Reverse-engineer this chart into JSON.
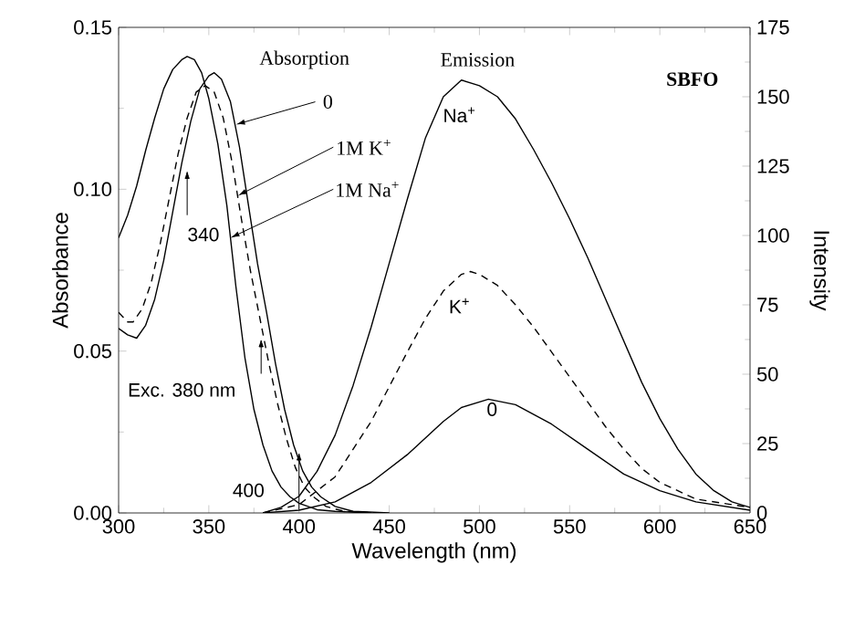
{
  "chart_data": {
    "type": "line",
    "xlabel": "Wavelength  (nm)",
    "ylabel": "Absorbance",
    "y2label": "Intensity",
    "xlim": [
      300,
      650
    ],
    "xticks": [
      300,
      350,
      400,
      450,
      500,
      550,
      600,
      650
    ],
    "ylim": [
      0,
      0.15
    ],
    "yticks": [
      {
        "value": 0,
        "label": "0.00"
      },
      {
        "value": 0.05,
        "label": "0.05"
      },
      {
        "value": 0.1,
        "label": "0.10"
      },
      {
        "value": 0.15,
        "label": "0.15"
      }
    ],
    "y2lim": [
      0,
      175
    ],
    "y2ticks": [
      0,
      25,
      50,
      75,
      100,
      125,
      150,
      175
    ],
    "grid": false,
    "marker": "none",
    "series": [
      {
        "color": "#000000",
        "line_style": "solid",
        "x": [
          300,
          305,
          310,
          315,
          320,
          325,
          330,
          335,
          338,
          342,
          346,
          350,
          355,
          360,
          365,
          370,
          375,
          380,
          385,
          390,
          395,
          400,
          410,
          420,
          440
        ],
        "values": [
          0.085,
          0.092,
          0.101,
          0.112,
          0.122,
          0.131,
          0.137,
          0.14,
          0.141,
          0.14,
          0.136,
          0.128,
          0.114,
          0.095,
          0.07,
          0.048,
          0.032,
          0.021,
          0.013,
          0.008,
          0.005,
          0.003,
          0.001,
          0.0005,
          0
        ]
      },
      {
        "color": "#000000",
        "line_style": "dashed",
        "x": [
          300,
          305,
          308,
          313,
          318,
          323,
          328,
          333,
          338,
          343,
          348,
          353,
          358,
          363,
          368,
          373,
          378,
          383,
          388,
          393,
          398,
          403,
          408,
          415,
          425,
          445
        ],
        "values": [
          0.062,
          0.059,
          0.059,
          0.063,
          0.071,
          0.083,
          0.097,
          0.111,
          0.122,
          0.13,
          0.132,
          0.13,
          0.122,
          0.108,
          0.091,
          0.075,
          0.061,
          0.047,
          0.034,
          0.023,
          0.014,
          0.008,
          0.005,
          0.002,
          0.0005,
          0
        ]
      },
      {
        "color": "#000000",
        "line_style": "solid",
        "x": [
          300,
          305,
          310,
          315,
          320,
          325,
          330,
          335,
          340,
          345,
          350,
          353,
          357,
          362,
          367,
          372,
          377,
          382,
          387,
          392,
          397,
          402,
          407,
          412,
          420,
          430,
          450
        ],
        "values": [
          0.057,
          0.055,
          0.054,
          0.058,
          0.066,
          0.078,
          0.093,
          0.108,
          0.121,
          0.131,
          0.135,
          0.136,
          0.134,
          0.127,
          0.113,
          0.095,
          0.077,
          0.062,
          0.046,
          0.032,
          0.021,
          0.013,
          0.008,
          0.005,
          0.002,
          0.0005,
          0
        ]
      },
      {
        "color": "#000000",
        "line_style": "solid",
        "axis": "y2",
        "x": [
          380,
          390,
          400,
          410,
          420,
          430,
          440,
          450,
          460,
          470,
          480,
          490,
          500,
          510,
          520,
          530,
          540,
          550,
          560,
          570,
          580,
          590,
          600,
          610,
          620,
          630,
          640,
          650
        ],
        "values": [
          0,
          2,
          6,
          15,
          28,
          46,
          67,
          90,
          113,
          135,
          150,
          156,
          154,
          150,
          142,
          131,
          119,
          106,
          92,
          77,
          62,
          47,
          34,
          23,
          14,
          8,
          4,
          2
        ]
      },
      {
        "color": "#000000",
        "line_style": "dashed",
        "axis": "y2",
        "x": [
          380,
          400,
          420,
          440,
          460,
          470,
          480,
          490,
          495,
          500,
          510,
          520,
          530,
          540,
          550,
          560,
          570,
          580,
          590,
          600,
          620,
          650
        ],
        "values": [
          0,
          3,
          13,
          33,
          58,
          70,
          80,
          86,
          87,
          86,
          82,
          75,
          67,
          58,
          49,
          40,
          31,
          23,
          16,
          11,
          5,
          2
        ]
      },
      {
        "color": "#000000",
        "line_style": "solid",
        "axis": "y2",
        "x": [
          380,
          400,
          420,
          440,
          460,
          480,
          490,
          505,
          520,
          540,
          560,
          580,
          600,
          620,
          650
        ],
        "values": [
          0,
          1,
          4,
          11,
          21,
          33,
          38,
          41,
          39,
          32,
          23,
          14,
          8,
          4,
          1
        ]
      }
    ],
    "annotations": [
      "Absorption",
      "Emission",
      "SBFO",
      {
        "text": "0",
        "x": 365,
        "y": 0.12
      },
      {
        "text": "1M K$^{+}$",
        "x": 366,
        "y": 0.098
      },
      {
        "text": "1M Na$^{+}$",
        "x": 362,
        "y": 0.085
      },
      {
        "text": "340",
        "x": 338,
        "y": 0.106
      },
      {
        "text": "Exc. 380 nm",
        "x": 379,
        "y": 0.054
      },
      {
        "text": "400",
        "x": 400,
        "y": 0.019
      },
      "Na$^{+}$",
      "K$^{+}$",
      "0"
    ]
  }
}
